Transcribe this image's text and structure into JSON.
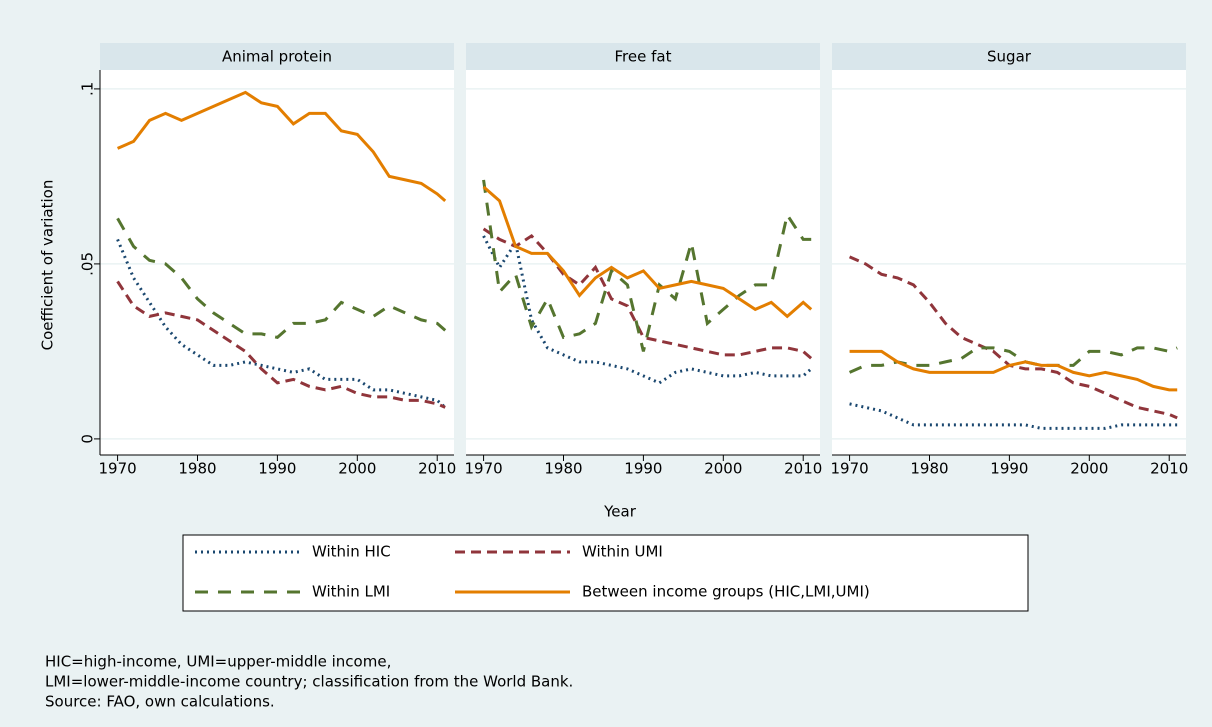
{
  "chart_data": [
    {
      "type": "line",
      "title": "Animal protein",
      "x": [
        1970,
        1972,
        1974,
        1976,
        1978,
        1980,
        1982,
        1984,
        1986,
        1988,
        1990,
        1992,
        1994,
        1996,
        1998,
        2000,
        2002,
        2004,
        2006,
        2008,
        2010,
        2011
      ],
      "xlim": [
        1967.8,
        2012.1
      ],
      "xticks": [
        1970,
        1980,
        1990,
        2000,
        2010
      ],
      "ylim": [
        -0.0046,
        0.1054
      ],
      "yticks": [
        0,
        {
          "value": 0.05,
          "label": ".05"
        },
        {
          "value": 0.1,
          "label": ".1"
        }
      ],
      "grid": true,
      "series": [
        {
          "name": "Within HIC",
          "color": "#1a476f",
          "dash": "dot",
          "values": [
            0.057,
            0.046,
            0.039,
            0.032,
            0.027,
            0.024,
            0.021,
            0.021,
            0.022,
            0.021,
            0.02,
            0.019,
            0.02,
            0.017,
            0.017,
            0.017,
            0.014,
            0.014,
            0.013,
            0.012,
            0.011,
            0.009
          ]
        },
        {
          "name": "Within UMI",
          "color": "#90353b",
          "dash": "dash",
          "values": [
            0.045,
            0.038,
            0.035,
            0.036,
            0.035,
            0.034,
            0.031,
            0.028,
            0.025,
            0.02,
            0.016,
            0.017,
            0.015,
            0.014,
            0.015,
            0.013,
            0.012,
            0.012,
            0.011,
            0.011,
            0.01,
            0.009
          ]
        },
        {
          "name": "Within LMI",
          "color": "#55752f",
          "dash": "longdash",
          "values": [
            0.063,
            0.055,
            0.051,
            0.05,
            0.046,
            0.04,
            0.036,
            0.033,
            0.03,
            0.03,
            0.029,
            0.033,
            0.033,
            0.034,
            0.039,
            0.037,
            0.035,
            0.038,
            0.036,
            0.034,
            0.033,
            0.031
          ]
        },
        {
          "name": "Between income groups (HIC,LMI,UMI)",
          "color": "#e37e00",
          "dash": "solid",
          "values": [
            0.083,
            0.085,
            0.091,
            0.093,
            0.091,
            0.093,
            0.095,
            0.097,
            0.099,
            0.096,
            0.095,
            0.09,
            0.093,
            0.093,
            0.088,
            0.087,
            0.082,
            0.075,
            0.074,
            0.073,
            0.07,
            0.068
          ]
        }
      ]
    },
    {
      "type": "line",
      "title": "Free fat",
      "x": [
        1970,
        1972,
        1974,
        1976,
        1978,
        1980,
        1982,
        1984,
        1986,
        1988,
        1990,
        1992,
        1994,
        1996,
        1998,
        2000,
        2002,
        2004,
        2006,
        2008,
        2010,
        2011
      ],
      "xlim": [
        1967.8,
        2012.1
      ],
      "xticks": [
        1970,
        1980,
        1990,
        2000,
        2010
      ],
      "series": [
        {
          "name": "Within HIC",
          "color": "#1a476f",
          "dash": "dot",
          "values": [
            0.058,
            0.049,
            0.056,
            0.034,
            0.026,
            0.024,
            0.022,
            0.022,
            0.021,
            0.02,
            0.018,
            0.016,
            0.019,
            0.02,
            0.019,
            0.018,
            0.018,
            0.019,
            0.018,
            0.018,
            0.018,
            0.02
          ]
        },
        {
          "name": "Within UMI",
          "color": "#90353b",
          "dash": "dash",
          "values": [
            0.06,
            0.057,
            0.055,
            0.058,
            0.053,
            0.047,
            0.044,
            0.049,
            0.04,
            0.038,
            0.029,
            0.028,
            0.027,
            0.026,
            0.025,
            0.024,
            0.024,
            0.025,
            0.026,
            0.026,
            0.025,
            0.023
          ]
        },
        {
          "name": "Within LMI",
          "color": "#55752f",
          "dash": "longdash",
          "values": [
            0.074,
            0.042,
            0.047,
            0.032,
            0.04,
            0.029,
            0.03,
            0.033,
            0.048,
            0.044,
            0.025,
            0.044,
            0.04,
            0.056,
            0.033,
            0.037,
            0.041,
            0.044,
            0.044,
            0.064,
            0.057,
            0.057
          ]
        },
        {
          "name": "Between income groups (HIC,LMI,UMI)",
          "color": "#e37e00",
          "dash": "solid",
          "values": [
            0.072,
            0.068,
            0.055,
            0.053,
            0.053,
            0.048,
            0.041,
            0.046,
            0.049,
            0.046,
            0.048,
            0.043,
            0.044,
            0.045,
            0.044,
            0.043,
            0.04,
            0.037,
            0.039,
            0.035,
            0.039,
            0.037
          ]
        }
      ]
    },
    {
      "type": "line",
      "title": "Sugar",
      "x": [
        1970,
        1972,
        1974,
        1976,
        1978,
        1980,
        1982,
        1984,
        1986,
        1988,
        1990,
        1992,
        1994,
        1996,
        1998,
        2000,
        2002,
        2004,
        2006,
        2008,
        2010,
        2011
      ],
      "xlim": [
        1967.8,
        2012.1
      ],
      "xticks": [
        1970,
        1980,
        1990,
        2000,
        2010
      ],
      "series": [
        {
          "name": "Within HIC",
          "color": "#1a476f",
          "dash": "dot",
          "values": [
            0.01,
            0.009,
            0.008,
            0.006,
            0.004,
            0.004,
            0.004,
            0.004,
            0.004,
            0.004,
            0.004,
            0.004,
            0.003,
            0.003,
            0.003,
            0.003,
            0.003,
            0.004,
            0.004,
            0.004,
            0.004,
            0.004
          ]
        },
        {
          "name": "Within UMI",
          "color": "#90353b",
          "dash": "dash",
          "values": [
            0.052,
            0.05,
            0.047,
            0.046,
            0.044,
            0.039,
            0.033,
            0.029,
            0.027,
            0.025,
            0.021,
            0.02,
            0.02,
            0.019,
            0.016,
            0.015,
            0.013,
            0.011,
            0.009,
            0.008,
            0.007,
            0.006
          ]
        },
        {
          "name": "Within LMI",
          "color": "#55752f",
          "dash": "longdash",
          "values": [
            0.019,
            0.021,
            0.021,
            0.022,
            0.021,
            0.021,
            0.022,
            0.023,
            0.026,
            0.026,
            0.025,
            0.022,
            0.021,
            0.021,
            0.021,
            0.025,
            0.025,
            0.024,
            0.026,
            0.026,
            0.025,
            0.026
          ]
        },
        {
          "name": "Between income groups (HIC,LMI,UMI)",
          "color": "#e37e00",
          "dash": "solid",
          "values": [
            0.025,
            0.025,
            0.025,
            0.022,
            0.02,
            0.019,
            0.019,
            0.019,
            0.019,
            0.019,
            0.021,
            0.022,
            0.021,
            0.021,
            0.019,
            0.018,
            0.019,
            0.018,
            0.017,
            0.015,
            0.014,
            0.014
          ]
        }
      ]
    }
  ],
  "shared": {
    "xlabel": "Year",
    "ylabel": "Coefficient of variation",
    "sharey": true,
    "note": [
      "HIC=high-income, UMI=upper-middle income,",
      "LMI=lower-middle-income country; classification from the World Bank.",
      "Source: FAO, own calculations."
    ]
  }
}
